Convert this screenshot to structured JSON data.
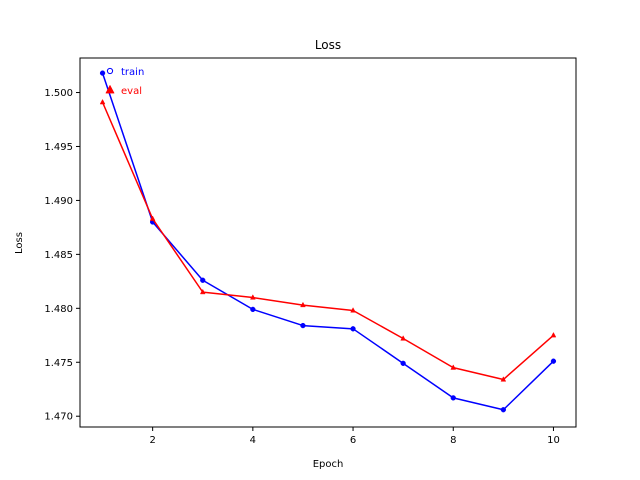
{
  "chart_data": {
    "type": "line",
    "title": "Loss",
    "xlabel": "Epoch",
    "ylabel": "Loss",
    "xlim": [
      0.55,
      10.45
    ],
    "ylim": [
      1.469,
      1.5032
    ],
    "x_ticks": [
      2,
      4,
      6,
      8,
      10
    ],
    "x_tick_labels": [
      "2",
      "4",
      "6",
      "8",
      "10"
    ],
    "y_ticks": [
      1.47,
      1.475,
      1.48,
      1.485,
      1.49,
      1.495,
      1.5
    ],
    "y_tick_labels": [
      "1.470",
      "1.475",
      "1.480",
      "1.485",
      "1.490",
      "1.495",
      "1.500"
    ],
    "grid": false,
    "legend_position": "top-left",
    "x": [
      1,
      2,
      3,
      4,
      5,
      6,
      7,
      8,
      9,
      10
    ],
    "series": [
      {
        "name": "train",
        "color": "#0000ff",
        "marker": "circle",
        "values": [
          1.5018,
          1.488,
          1.4826,
          1.4799,
          1.4784,
          1.4781,
          1.4749,
          1.4717,
          1.4706,
          1.4751
        ]
      },
      {
        "name": "eval",
        "color": "#ff0000",
        "marker": "triangle",
        "values": [
          1.4991,
          1.4883,
          1.4815,
          1.481,
          1.4803,
          1.4798,
          1.4772,
          1.4745,
          1.4734,
          1.4775
        ]
      }
    ]
  }
}
